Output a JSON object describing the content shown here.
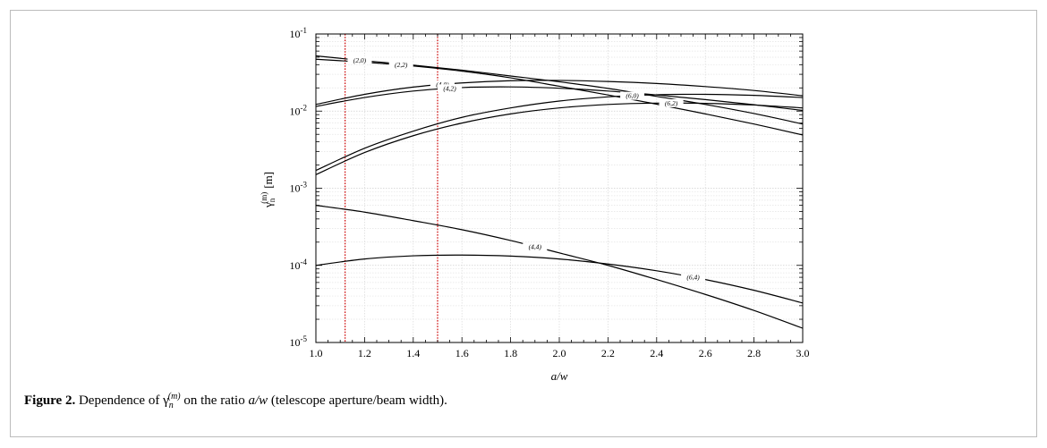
{
  "figure": {
    "label": "Figure 2.",
    "caption_prefix": "Dependence of",
    "caption_symbol": "γ",
    "caption_sub": "n",
    "caption_sup": "(m)",
    "caption_middle": "on the ratio",
    "caption_ratio": "a/w",
    "caption_suffix": "(telescope aperture/beam width)."
  },
  "chart_data": {
    "type": "line",
    "title": "",
    "xlabel": "a/w",
    "ylabel": "γn(m) [m]",
    "ylabel_symbol": "γ",
    "ylabel_sub": "n",
    "ylabel_sup": "(m)",
    "ylabel_unit": "[m]",
    "xlim": [
      1.0,
      3.0
    ],
    "ylim": [
      1e-05,
      0.1
    ],
    "yscale": "log",
    "grid": true,
    "x_ticks": [
      1.0,
      1.2,
      1.4,
      1.6,
      1.8,
      2.0,
      2.2,
      2.4,
      2.6,
      2.8,
      3.0
    ],
    "x_tick_labels": [
      "1.0",
      "1.2",
      "1.4",
      "1.6",
      "1.8",
      "2.0",
      "2.2",
      "2.4",
      "2.6",
      "2.8",
      "3.0"
    ],
    "y_tick_labels": [
      {
        "base": "10",
        "exp": "-5"
      },
      {
        "base": "10",
        "exp": "-4"
      },
      {
        "base": "10",
        "exp": "-3"
      },
      {
        "base": "10",
        "exp": "-2"
      },
      {
        "base": "10",
        "exp": "-1"
      }
    ],
    "vertical_markers": [
      1.12,
      1.5
    ],
    "marker_color": "#cc0000",
    "line_color": "#000000",
    "series": [
      {
        "name": "(2,0)",
        "label_x": 1.18,
        "x": [
          1.0,
          1.2,
          1.4,
          1.6,
          1.8,
          2.0,
          2.2,
          2.4,
          2.6,
          2.8,
          3.0
        ],
        "y": [
          0.052,
          0.045,
          0.0395,
          0.034,
          0.0285,
          0.024,
          0.0197,
          0.0155,
          0.0122,
          0.0093,
          0.0068
        ]
      },
      {
        "name": "(2,2)",
        "label_x": 1.35,
        "x": [
          1.0,
          1.2,
          1.4,
          1.6,
          1.8,
          2.0,
          2.2,
          2.4,
          2.6,
          2.8,
          3.0
        ],
        "y": [
          0.047,
          0.043,
          0.0385,
          0.033,
          0.027,
          0.021,
          0.0162,
          0.0123,
          0.0092,
          0.0068,
          0.0049
        ]
      },
      {
        "name": "(4,0)",
        "label_x": 1.52,
        "x": [
          1.0,
          1.2,
          1.4,
          1.6,
          1.8,
          2.0,
          2.2,
          2.4,
          2.6,
          2.8,
          3.0
        ],
        "y": [
          0.0122,
          0.0165,
          0.0205,
          0.0232,
          0.0248,
          0.025,
          0.0242,
          0.0228,
          0.0208,
          0.0185,
          0.0158
        ]
      },
      {
        "name": "(4,2)",
        "label_x": 1.55,
        "x": [
          1.0,
          1.2,
          1.4,
          1.6,
          1.8,
          2.0,
          2.2,
          2.4,
          2.6,
          2.8,
          3.0
        ],
        "y": [
          0.0115,
          0.015,
          0.0182,
          0.0202,
          0.0206,
          0.0198,
          0.0182,
          0.0162,
          0.0141,
          0.0121,
          0.0102
        ]
      },
      {
        "name": "(6,0)",
        "label_x": 2.3,
        "x": [
          1.0,
          1.2,
          1.4,
          1.6,
          1.8,
          2.0,
          2.2,
          2.4,
          2.6,
          2.8,
          3.0
        ],
        "y": [
          0.0017,
          0.0033,
          0.0055,
          0.0083,
          0.011,
          0.0135,
          0.0153,
          0.0163,
          0.0165,
          0.016,
          0.015
        ]
      },
      {
        "name": "(6,2)",
        "label_x": 2.46,
        "x": [
          1.0,
          1.2,
          1.4,
          1.6,
          1.8,
          2.0,
          2.2,
          2.4,
          2.6,
          2.8,
          3.0
        ],
        "y": [
          0.0015,
          0.0029,
          0.0048,
          0.007,
          0.0092,
          0.011,
          0.0122,
          0.0127,
          0.0126,
          0.012,
          0.011
        ]
      },
      {
        "name": "(4,4)",
        "label_x": 1.9,
        "x": [
          1.0,
          1.2,
          1.4,
          1.6,
          1.8,
          2.0,
          2.2,
          2.4,
          2.6,
          2.8,
          3.0
        ],
        "y": [
          0.0006,
          0.00049,
          0.00038,
          0.00029,
          0.00021,
          0.000145,
          0.0001,
          6.55e-05,
          4.2e-05,
          2.6e-05,
          1.53e-05
        ]
      },
      {
        "name": "(6,4)",
        "label_x": 2.55,
        "x": [
          1.0,
          1.2,
          1.4,
          1.6,
          1.8,
          2.0,
          2.2,
          2.4,
          2.6,
          2.8,
          3.0
        ],
        "y": [
          0.0001,
          0.000121,
          0.000133,
          0.000136,
          0.000132,
          0.000121,
          0.000104,
          8.5e-05,
          6.55e-05,
          4.75e-05,
          3.25e-05
        ]
      }
    ]
  }
}
